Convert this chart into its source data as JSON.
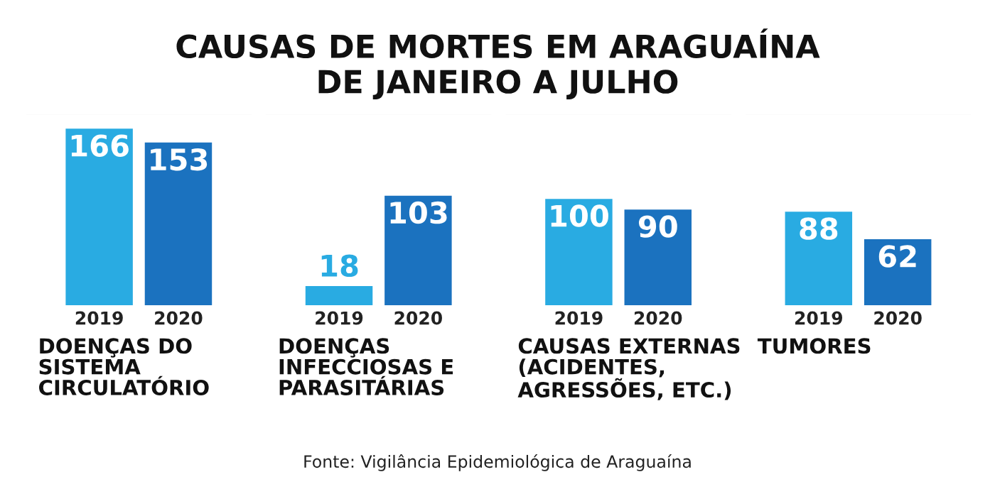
{
  "chart_data": {
    "type": "bar",
    "title": "CAUSAS DE MORTES EM ARAGUAÍNA\nDE JANEIRO A JULHO",
    "categories": [
      "DOENÇAS DO\nSISTEMA\nCIRCULATÓRIO",
      "DOENÇAS\nINFECCIOSAS E\nPARASITÁRIAS",
      "CAUSAS EXTERNAS\n(ACIDENTES,\nAGRESSÕES, ETC.)",
      "TUMORES"
    ],
    "series": [
      {
        "name": "2019",
        "color": "#29abe2",
        "values": [
          166,
          18,
          100,
          88
        ]
      },
      {
        "name": "2020",
        "color": "#1b72bf",
        "values": [
          153,
          103,
          90,
          62
        ]
      }
    ],
    "data_labels": true,
    "annotations": [
      "Fonte: Vigilância Epidemiológica de Araguaína"
    ]
  }
}
